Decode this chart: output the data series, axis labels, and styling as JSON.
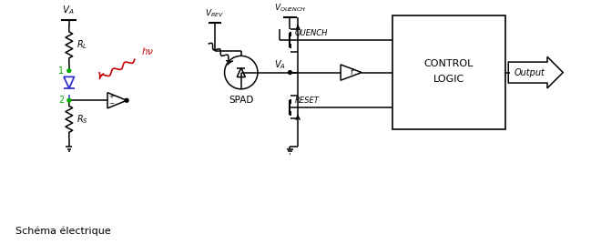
{
  "bg_color": "#ffffff",
  "line_color": "#000000",
  "diode_color": "#3333cc",
  "green_color": "#00aa00",
  "red_color": "#cc0000",
  "label_schema": "Schéma électrique",
  "label_f": "f",
  "label_SPAD": "SPAD",
  "label_QUENCH": "QUENCH",
  "label_RESET": "RESET",
  "label_CONTROL": "CONTROL",
  "label_LOGIC": "LOGIC",
  "label_Output": "Output"
}
